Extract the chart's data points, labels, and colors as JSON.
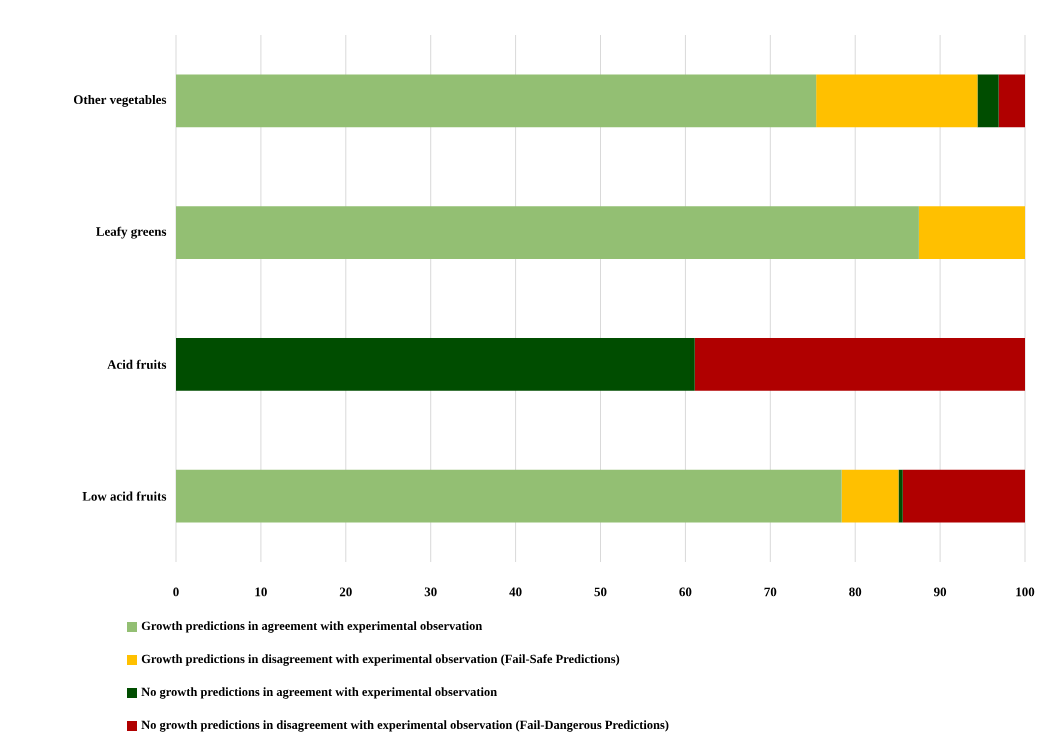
{
  "chart_data": {
    "type": "bar",
    "orientation": "horizontal",
    "stacked": true,
    "categories": [
      "Other vegetables",
      "Leafy greens",
      "Acid fruits",
      "Low acid fruits"
    ],
    "series": [
      {
        "name": "Growth predictions in agreement with experimental observation",
        "color": "#93bf73",
        "values": [
          75.4,
          87.5,
          0,
          78.4
        ]
      },
      {
        "name": "Growth predictions in disagreement with experimental observation (Fail-Safe Predictions)",
        "color": "#ffc000",
        "values": [
          19.0,
          12.5,
          0,
          6.7
        ]
      },
      {
        "name": "No growth predictions in agreement with experimental observation",
        "color": "#004d00",
        "values": [
          2.5,
          0,
          61.1,
          0.5
        ]
      },
      {
        "name": "No growth predictions in disagreement with experimental observation (Fail-Dangerous Predictions)",
        "color": "#b00000",
        "values": [
          3.1,
          0,
          38.9,
          14.4
        ]
      }
    ],
    "xlim": [
      0,
      100
    ],
    "xticks": [
      0,
      10,
      20,
      30,
      40,
      50,
      60,
      70,
      80,
      90,
      100
    ],
    "grid": "x",
    "legend": "bottom"
  }
}
